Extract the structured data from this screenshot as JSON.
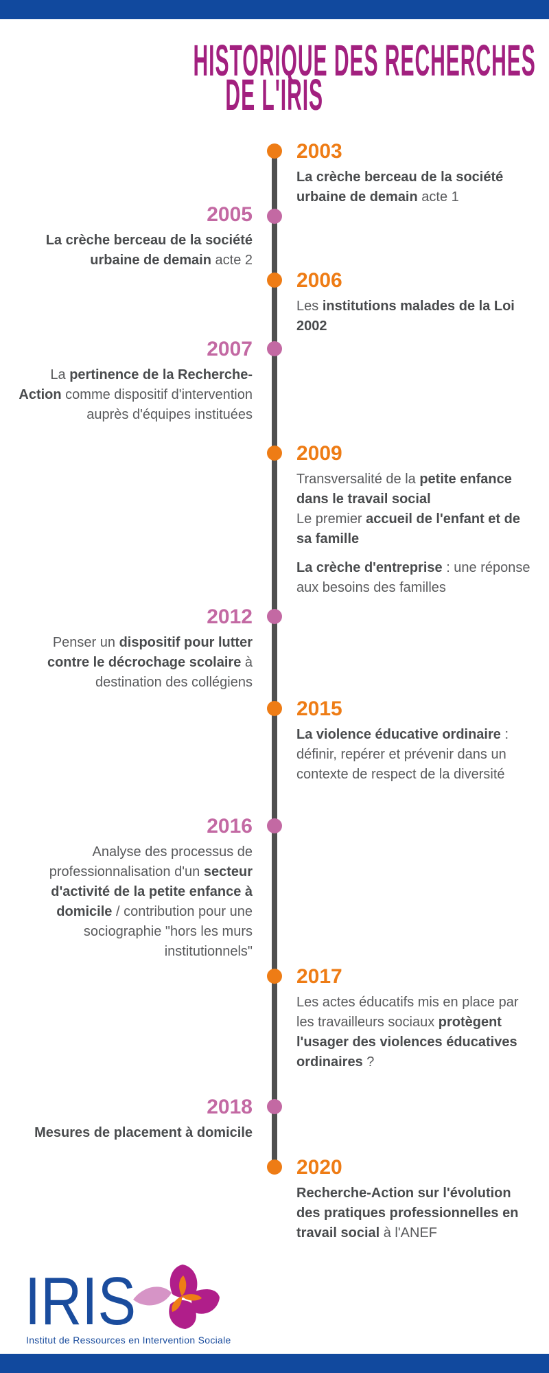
{
  "header": {
    "title_line1": "HISTORIQUE DES RECHERCHES",
    "title_line2": "DE L'IRIS"
  },
  "colors": {
    "bar_blue": "#11499e",
    "title_magenta": "#a2207f",
    "orange": "#ee7c15",
    "pink": "#c369a3",
    "line_gray": "#4f4f4f",
    "text_regular": "#595a5c",
    "text_bold": "#494b4d",
    "logo_blue": "#1a4c9d",
    "logo_magenta": "#b01e8a",
    "logo_light_pink": "#d694c6",
    "logo_orange": "#ee7d16"
  },
  "timeline": {
    "entries": [
      {
        "year": "2003",
        "side": "right",
        "paragraphs": [
          [
            {
              "t": "La crèche berceau de la société urbaine de demain",
              "bold": true
            },
            {
              "t": " acte 1",
              "bold": false
            }
          ]
        ]
      },
      {
        "year": "2005",
        "side": "left",
        "paragraphs": [
          [
            {
              "t": "La crèche berceau de la société urbaine de demain",
              "bold": true
            },
            {
              "t": " acte 2",
              "bold": false
            }
          ]
        ]
      },
      {
        "year": "2006",
        "side": "right",
        "paragraphs": [
          [
            {
              "t": "Les ",
              "bold": false
            },
            {
              "t": "institutions malades de la Loi 2002",
              "bold": true
            }
          ]
        ]
      },
      {
        "year": "2007",
        "side": "left",
        "paragraphs": [
          [
            {
              "t": "La ",
              "bold": false
            },
            {
              "t": "pertinence de la Recherche-Action",
              "bold": true
            },
            {
              "t": " comme dispositif d'intervention auprès d'équipes instituées",
              "bold": false
            }
          ]
        ]
      },
      {
        "year": "2009",
        "side": "right",
        "paragraphs": [
          [
            {
              "t": "Transversalité de la ",
              "bold": false
            },
            {
              "t": "petite enfance dans le travail social",
              "bold": true
            },
            {
              "br": true
            },
            {
              "t": "Le premier ",
              "bold": false
            },
            {
              "t": "accueil de l'enfant et de sa famille",
              "bold": true
            }
          ],
          [
            {
              "t": "La crèche d'entreprise",
              "bold": true
            },
            {
              "t": " : une réponse aux besoins des familles",
              "bold": false
            }
          ]
        ]
      },
      {
        "year": "2012",
        "side": "left",
        "paragraphs": [
          [
            {
              "t": "Penser un ",
              "bold": false
            },
            {
              "t": "dispositif pour lutter contre le décrochage scolaire",
              "bold": true
            },
            {
              "t": " à destination des collégiens",
              "bold": false
            }
          ]
        ]
      },
      {
        "year": "2015",
        "side": "right",
        "paragraphs": [
          [
            {
              "t": "La violence éducative ordinaire",
              "bold": true
            },
            {
              "t": " : définir, repérer et prévenir dans un contexte de respect de la diversité",
              "bold": false
            }
          ]
        ]
      },
      {
        "year": "2016",
        "side": "left",
        "paragraphs": [
          [
            {
              "t": "Analyse des processus de professionnalisation d'un ",
              "bold": false
            },
            {
              "t": "secteur d'activité de la petite enfance à domicile",
              "bold": true
            },
            {
              "t": " / contribution pour une sociographie \"hors les murs institutionnels\"",
              "bold": false
            }
          ]
        ]
      },
      {
        "year": "2017",
        "side": "right",
        "paragraphs": [
          [
            {
              "t": "Les actes éducatifs mis en place par les travailleurs sociaux ",
              "bold": false
            },
            {
              "t": "protègent l'usager des violences éducatives ordinaires",
              "bold": true
            },
            {
              "t": " ?",
              "bold": false
            }
          ]
        ]
      },
      {
        "year": "2018",
        "side": "left",
        "paragraphs": [
          [
            {
              "t": "Mesures de placement à domicile",
              "bold": true
            }
          ]
        ]
      },
      {
        "year": "2020",
        "side": "right",
        "paragraphs": [
          [
            {
              "t": "Recherche-Action sur l'évolution des pratiques professionnelles en travail social",
              "bold": true
            },
            {
              "t": " à l'ANEF",
              "bold": false
            }
          ]
        ]
      }
    ]
  },
  "footer": {
    "logo_text": "IRIS",
    "logo_icon": "iris-flower-icon",
    "tagline": "Institut de Ressources en Intervention Sociale"
  }
}
